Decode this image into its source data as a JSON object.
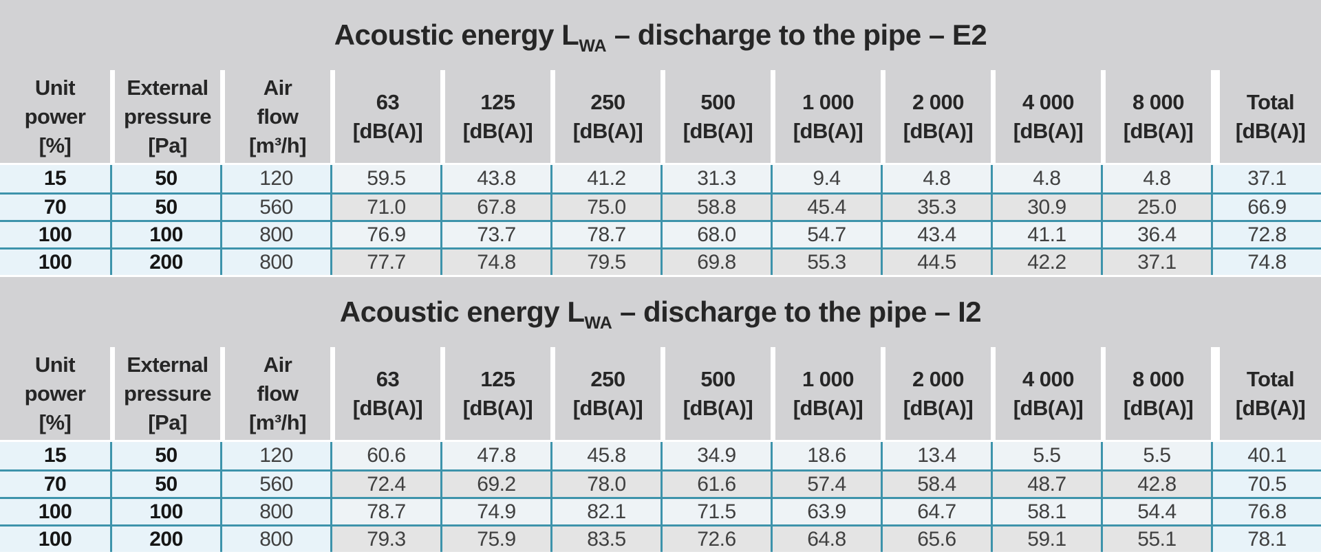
{
  "colors": {
    "band_gray": "#d2d2d4",
    "cell_blue": "#e8f3f9",
    "cell_pale": "#eef3f6",
    "cell_gray": "#e4e4e4",
    "grid_teal": "#3d93ab",
    "text_dark": "#262626"
  },
  "columns": [
    {
      "id": "unit-power",
      "lines": [
        "Unit",
        "power",
        "[%]"
      ]
    },
    {
      "id": "external-pressure",
      "lines": [
        "External",
        "pressure",
        "[Pa]"
      ]
    },
    {
      "id": "air-flow",
      "lines": [
        "Air",
        "flow",
        "[m³/h]"
      ]
    },
    {
      "id": "63",
      "lines": [
        "63",
        "[dB(A)]"
      ]
    },
    {
      "id": "125",
      "lines": [
        "125",
        "[dB(A)]"
      ]
    },
    {
      "id": "250",
      "lines": [
        "250",
        "[dB(A)]"
      ]
    },
    {
      "id": "500",
      "lines": [
        "500",
        "[dB(A)]"
      ]
    },
    {
      "id": "1000",
      "lines": [
        "1 000",
        "[dB(A)]"
      ]
    },
    {
      "id": "2000",
      "lines": [
        "2 000",
        "[dB(A)]"
      ]
    },
    {
      "id": "4000",
      "lines": [
        "4 000",
        "[dB(A)]"
      ]
    },
    {
      "id": "8000",
      "lines": [
        "8 000",
        "[dB(A)]"
      ]
    },
    {
      "id": "total",
      "lines": [
        "Total",
        "[dB(A)]"
      ]
    }
  ],
  "tables": [
    {
      "id": "E2",
      "title_prefix": "Acoustic energy L",
      "title_sub": "WA",
      "title_suffix": " – discharge to the pipe – E2",
      "rows": [
        [
          "15",
          "50",
          "120",
          "59.5",
          "43.8",
          "41.2",
          "31.3",
          "9.4",
          "4.8",
          "4.8",
          "4.8",
          "37.1"
        ],
        [
          "70",
          "50",
          "560",
          "71.0",
          "67.8",
          "75.0",
          "58.8",
          "45.4",
          "35.3",
          "30.9",
          "25.0",
          "66.9"
        ],
        [
          "100",
          "100",
          "800",
          "76.9",
          "73.7",
          "78.7",
          "68.0",
          "54.7",
          "43.4",
          "41.1",
          "36.4",
          "72.8"
        ],
        [
          "100",
          "200",
          "800",
          "77.7",
          "74.8",
          "79.5",
          "69.8",
          "55.3",
          "44.5",
          "42.2",
          "37.1",
          "74.8"
        ]
      ]
    },
    {
      "id": "I2",
      "title_prefix": "Acoustic energy L",
      "title_sub": "WA",
      "title_suffix": " – discharge to the pipe – I2",
      "rows": [
        [
          "15",
          "50",
          "120",
          "60.6",
          "47.8",
          "45.8",
          "34.9",
          "18.6",
          "13.4",
          "5.5",
          "5.5",
          "40.1"
        ],
        [
          "70",
          "50",
          "560",
          "72.4",
          "69.2",
          "78.0",
          "61.6",
          "57.4",
          "58.4",
          "48.7",
          "42.8",
          "70.5"
        ],
        [
          "100",
          "100",
          "800",
          "78.7",
          "74.9",
          "82.1",
          "71.5",
          "63.9",
          "64.7",
          "58.1",
          "54.4",
          "76.8"
        ],
        [
          "100",
          "200",
          "800",
          "79.3",
          "75.9",
          "83.5",
          "72.6",
          "64.8",
          "65.6",
          "59.1",
          "55.1",
          "78.1"
        ]
      ]
    }
  ]
}
